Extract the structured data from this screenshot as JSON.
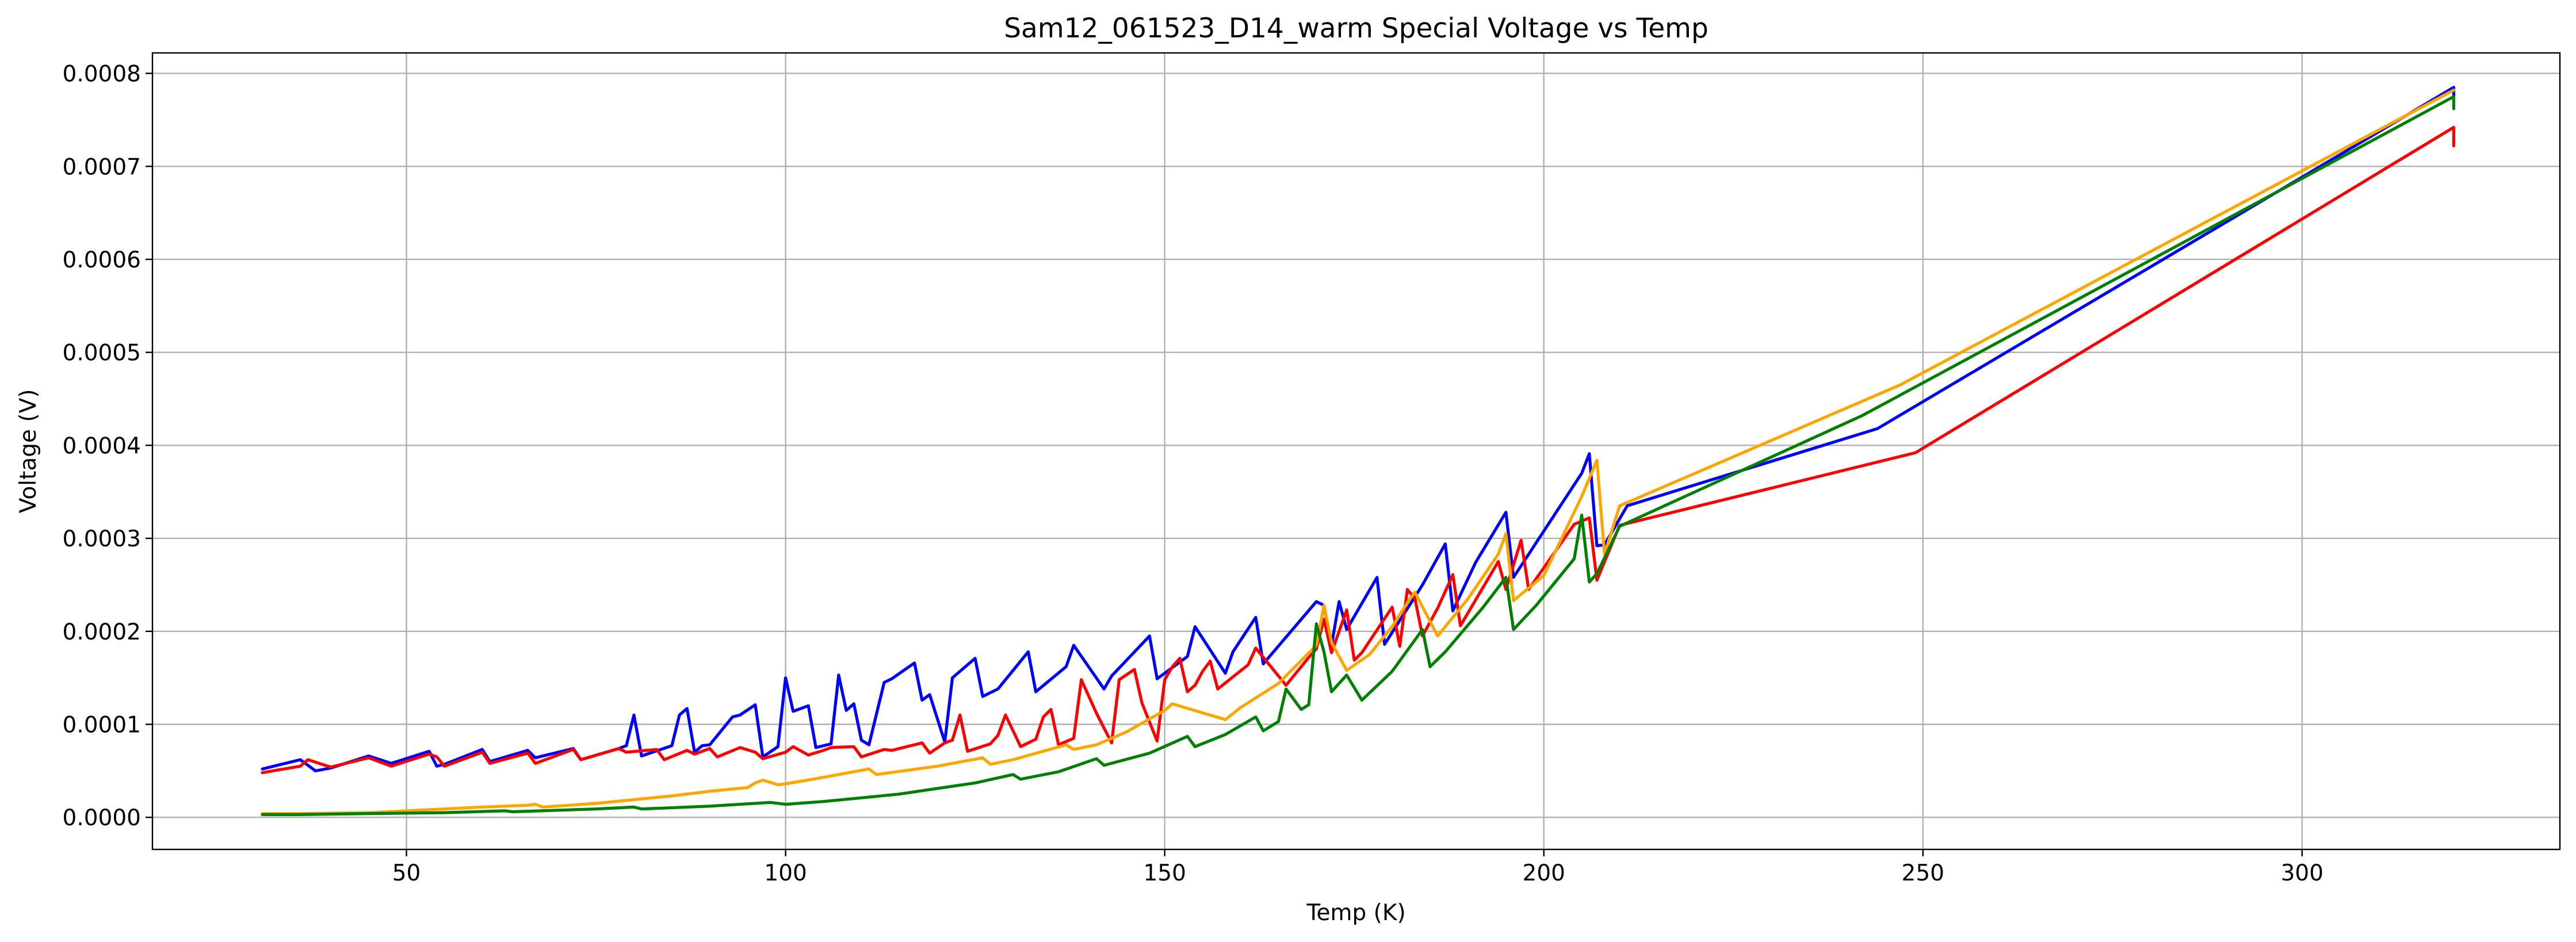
{
  "chart_data": {
    "type": "line",
    "title": "Sam12_061523_D14_warm Special Voltage vs Temp",
    "xlabel": "Temp (K)",
    "ylabel": "Voltage (V)",
    "xlim": [
      16.5,
      334
    ],
    "ylim": [
      -3.45e-05,
      0.000822
    ],
    "grid": true,
    "x_ticks": [
      50,
      100,
      150,
      200,
      250,
      300
    ],
    "x_tick_labels": [
      "50",
      "100",
      "150",
      "200",
      "250",
      "300"
    ],
    "y_ticks": [
      0.0,
      0.0001,
      0.0002,
      0.0003,
      0.0004,
      0.0005,
      0.0006,
      0.0007,
      0.0008
    ],
    "y_tick_labels": [
      "0.0000",
      "0.0001",
      "0.0002",
      "0.0003",
      "0.0004",
      "0.0005",
      "0.0006",
      "0.0007",
      "0.0008"
    ],
    "series": [
      {
        "color": "#0000ff",
        "x": [
          31,
          36,
          38,
          40,
          45,
          48,
          53,
          54,
          55,
          60,
          61,
          66,
          67,
          72,
          73,
          78,
          79,
          80,
          81,
          85,
          86,
          87,
          88,
          89,
          90,
          93,
          94,
          96,
          97,
          99,
          100,
          101,
          103,
          104,
          106,
          107,
          108,
          109,
          110,
          111,
          113,
          114,
          117,
          118,
          119,
          121,
          122,
          125,
          126,
          128,
          132,
          133,
          137,
          138,
          142,
          143,
          148,
          149,
          153,
          154,
          158,
          159,
          162,
          163,
          170,
          171,
          172,
          173,
          174,
          178,
          179,
          184,
          187,
          188,
          191,
          195,
          196,
          205,
          206,
          207,
          208,
          211,
          244,
          320,
          320
        ],
        "y": [
          5.2e-05,
          6.2e-05,
          5e-05,
          5.3e-05,
          6.6e-05,
          5.8e-05,
          7.1e-05,
          5.5e-05,
          5.7e-05,
          7.3e-05,
          6e-05,
          7.2e-05,
          6.4e-05,
          7.4e-05,
          6.2e-05,
          7.4e-05,
          7.7e-05,
          0.00011,
          6.6e-05,
          7.7e-05,
          0.00011,
          0.000117,
          7e-05,
          7.7e-05,
          7.8e-05,
          0.000108,
          0.00011,
          0.000121,
          6.5e-05,
          7.6e-05,
          0.00015,
          0.000114,
          0.00012,
          7.5e-05,
          7.9e-05,
          0.000153,
          0.000115,
          0.000122,
          8.3e-05,
          7.8e-05,
          0.000145,
          0.000149,
          0.000166,
          0.000126,
          0.000132,
          8.1e-05,
          0.00015,
          0.000171,
          0.00013,
          0.000138,
          0.000178,
          0.000135,
          0.000162,
          0.000185,
          0.000138,
          0.000152,
          0.000195,
          0.000149,
          0.000173,
          0.000205,
          0.000155,
          0.000178,
          0.000215,
          0.000165,
          0.000232,
          0.000228,
          0.000185,
          0.000232,
          0.000202,
          0.000258,
          0.000186,
          0.00025,
          0.000294,
          0.000222,
          0.000274,
          0.000328,
          0.000258,
          0.00037,
          0.000391,
          0.000292,
          0.000293,
          0.000335,
          0.000418,
          0.000785,
          0.000775
        ]
      },
      {
        "color": "#ff0000",
        "x": [
          31,
          36,
          37,
          40,
          45,
          48,
          53,
          54,
          55,
          60,
          61,
          66,
          67,
          72,
          73,
          78,
          79,
          83,
          84,
          87,
          88,
          90,
          91,
          94,
          96,
          97,
          100,
          101,
          103,
          105,
          106,
          109,
          110,
          113,
          114,
          118,
          119,
          121,
          122,
          123,
          124,
          127,
          128,
          129,
          131,
          133,
          134,
          135,
          136,
          138,
          139,
          141,
          143,
          144,
          146,
          147,
          149,
          150,
          151,
          152,
          153,
          154,
          155,
          156,
          157,
          161,
          162,
          166,
          169,
          170,
          171,
          172,
          174,
          175,
          176,
          180,
          181,
          182,
          183,
          184,
          186,
          188,
          189,
          194,
          195,
          197,
          198,
          204,
          206,
          207,
          210,
          249,
          320,
          320
        ],
        "y": [
          4.8e-05,
          5.5e-05,
          6.2e-05,
          5.4e-05,
          6.4e-05,
          5.5e-05,
          6.8e-05,
          6.5e-05,
          5.5e-05,
          7e-05,
          5.8e-05,
          6.9e-05,
          5.8e-05,
          7.3e-05,
          6.2e-05,
          7.4e-05,
          7e-05,
          7.3e-05,
          6.2e-05,
          7.2e-05,
          6.8e-05,
          7.4e-05,
          6.5e-05,
          7.5e-05,
          7e-05,
          6.3e-05,
          7e-05,
          7.6e-05,
          6.7e-05,
          7.2e-05,
          7.5e-05,
          7.6e-05,
          6.5e-05,
          7.3e-05,
          7.2e-05,
          8e-05,
          6.9e-05,
          8e-05,
          8.3e-05,
          0.00011,
          7.1e-05,
          7.9e-05,
          8.8e-05,
          0.00011,
          7.6e-05,
          8.4e-05,
          0.000108,
          0.000116,
          7.8e-05,
          8.5e-05,
          0.000148,
          0.000112,
          8e-05,
          0.000148,
          0.000159,
          0.000123,
          8.2e-05,
          0.000148,
          0.000162,
          0.000171,
          0.000135,
          0.000142,
          0.000157,
          0.000168,
          0.000138,
          0.000164,
          0.000182,
          0.000142,
          0.000172,
          0.000181,
          0.000213,
          0.000177,
          0.000223,
          0.000169,
          0.000177,
          0.000226,
          0.000184,
          0.000245,
          0.000235,
          0.000195,
          0.000225,
          0.000261,
          0.000206,
          0.000275,
          0.000245,
          0.000298,
          0.000245,
          0.000315,
          0.000322,
          0.000255,
          0.000314,
          0.000392,
          0.000742,
          0.000722
        ]
      },
      {
        "color": "#ffa500",
        "x": [
          31,
          36,
          45,
          50,
          55,
          60,
          66,
          67,
          68,
          75,
          80,
          85,
          90,
          95,
          96,
          97,
          99,
          100,
          105,
          111,
          112,
          120,
          126,
          127,
          130,
          137,
          138,
          141,
          145,
          150,
          151,
          158,
          160,
          165,
          170,
          171,
          172,
          174,
          177,
          180,
          182,
          183,
          186,
          190,
          194,
          195,
          196,
          200,
          205,
          207,
          208,
          210,
          247,
          320
        ],
        "y": [
          4e-06,
          4e-06,
          5e-06,
          7e-06,
          9e-06,
          1.1e-05,
          1.3e-05,
          1.4e-05,
          1.1e-05,
          1.5e-05,
          1.9e-05,
          2.3e-05,
          2.8e-05,
          3.2e-05,
          3.7e-05,
          4e-05,
          3.5e-05,
          3.6e-05,
          4.3e-05,
          5.2e-05,
          4.6e-05,
          5.5e-05,
          6.4e-05,
          5.7e-05,
          6.2e-05,
          7.8e-05,
          7.3e-05,
          7.8e-05,
          9.2e-05,
          0.000115,
          0.000122,
          0.000105,
          0.000118,
          0.000144,
          0.000185,
          0.000228,
          0.000188,
          0.000158,
          0.000175,
          0.000205,
          0.000231,
          0.000242,
          0.000195,
          0.000235,
          0.000283,
          0.000305,
          0.000233,
          0.00026,
          0.000345,
          0.000384,
          0.000283,
          0.000335,
          0.000465,
          0.000782
        ]
      },
      {
        "color": "#008000",
        "x": [
          31,
          36,
          45,
          55,
          63,
          64,
          75,
          80,
          81,
          90,
          98,
          100,
          105,
          110,
          115,
          120,
          125,
          130,
          131,
          136,
          141,
          142,
          148,
          153,
          154,
          158,
          162,
          163,
          165,
          166,
          168,
          169,
          170,
          171,
          172,
          174,
          176,
          180,
          184,
          185,
          187,
          192,
          195,
          196,
          199,
          204,
          205,
          206,
          207,
          210,
          242,
          320,
          320
        ],
        "y": [
          3e-06,
          3e-06,
          4e-06,
          5e-06,
          7e-06,
          6e-06,
          9e-06,
          1.1e-05,
          9e-06,
          1.2e-05,
          1.6e-05,
          1.4e-05,
          1.7e-05,
          2.1e-05,
          2.5e-05,
          3.1e-05,
          3.7e-05,
          4.6e-05,
          4.1e-05,
          4.9e-05,
          6.3e-05,
          5.6e-05,
          6.9e-05,
          8.7e-05,
          7.6e-05,
          8.9e-05,
          0.000108,
          9.3e-05,
          0.000103,
          0.000138,
          0.000116,
          0.000121,
          0.000208,
          0.000178,
          0.000135,
          0.000153,
          0.000126,
          0.000157,
          0.000202,
          0.000162,
          0.000178,
          0.000226,
          0.000258,
          0.000202,
          0.000228,
          0.000278,
          0.000325,
          0.000253,
          0.000262,
          0.000313,
          0.000432,
          0.000775,
          0.000762
        ]
      }
    ]
  }
}
